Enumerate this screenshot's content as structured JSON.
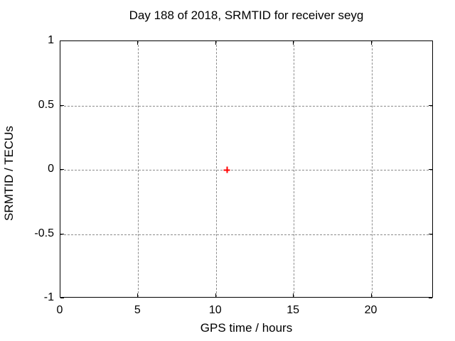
{
  "chart_data": {
    "type": "scatter",
    "title": "Day 188 of 2018, SRMTID for receiver seyg",
    "xlabel": "GPS time / hours",
    "ylabel": "SRMTID / TECUs",
    "xlim": [
      0,
      24
    ],
    "ylim": [
      -1,
      1
    ],
    "grid": true,
    "legend_position": "none",
    "xticks": [
      {
        "value": 0,
        "label": "0"
      },
      {
        "value": 5,
        "label": "5"
      },
      {
        "value": 10,
        "label": "10"
      },
      {
        "value": 15,
        "label": "15"
      },
      {
        "value": 20,
        "label": "20"
      }
    ],
    "yticks": [
      {
        "value": 1,
        "label": "1"
      },
      {
        "value": 0.5,
        "label": "0.5"
      },
      {
        "value": 0,
        "label": "0"
      },
      {
        "value": -0.5,
        "label": "-0.5"
      },
      {
        "value": -1,
        "label": "-1"
      }
    ],
    "series": [
      {
        "marker": "plus",
        "color": "#ff0000",
        "points": [
          {
            "x": 10.7,
            "y": 0.0
          }
        ]
      }
    ]
  },
  "colors": {
    "background": "#ffffff",
    "border": "#000000",
    "grid": "#8c8c8c",
    "text": "#000000",
    "marker": "#ff0000"
  }
}
